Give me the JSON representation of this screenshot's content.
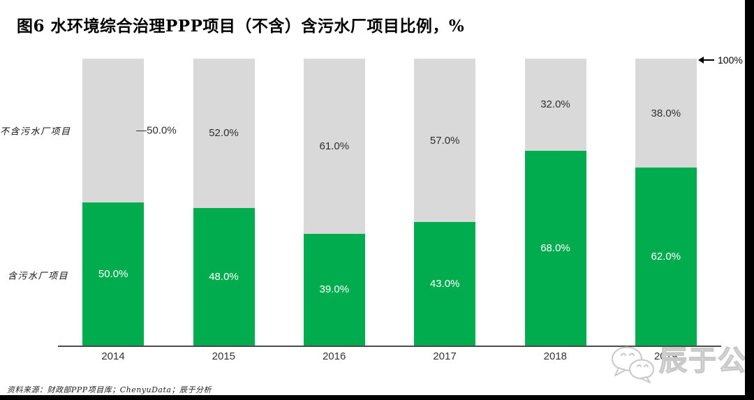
{
  "chart_data": {
    "type": "bar",
    "variant": "stacked-100-percent",
    "title": "图6 水环境综合治理PPP项目（不含）含污水厂项目比例，%",
    "unit": "%",
    "categories": [
      "2014",
      "2015",
      "2016",
      "2017",
      "2018",
      "2019"
    ],
    "series": [
      {
        "name": "含污水厂项目",
        "color": "#00AC4D",
        "label_color": "#ffffff",
        "values": [
          50.0,
          48.0,
          39.0,
          43.0,
          68.0,
          62.0
        ],
        "labels": [
          "50.0%",
          "48.0%",
          "39.0%",
          "43.0%",
          "68.0%",
          "62.0%"
        ]
      },
      {
        "name": "不含污水厂项目",
        "color": "#D9D9D9",
        "label_color": "#2f2f2f",
        "values": [
          50.0,
          52.0,
          61.0,
          57.0,
          32.0,
          38.0
        ],
        "labels": [
          "—50.0%",
          "52.0%",
          "61.0%",
          "57.0%",
          "32.0%",
          "38.0%"
        ],
        "callout_index": 0
      }
    ],
    "ylim": [
      0,
      100
    ],
    "grid": false,
    "legend_position": "row-labels-left",
    "top_axis_annotation": "100%"
  },
  "footer": {
    "source_note": "资料来源：财政部PPP项目库；ChenyuData；辰于分析"
  },
  "watermark": {
    "brand_name": "辰于公司",
    "icon": "wechat-icon"
  }
}
